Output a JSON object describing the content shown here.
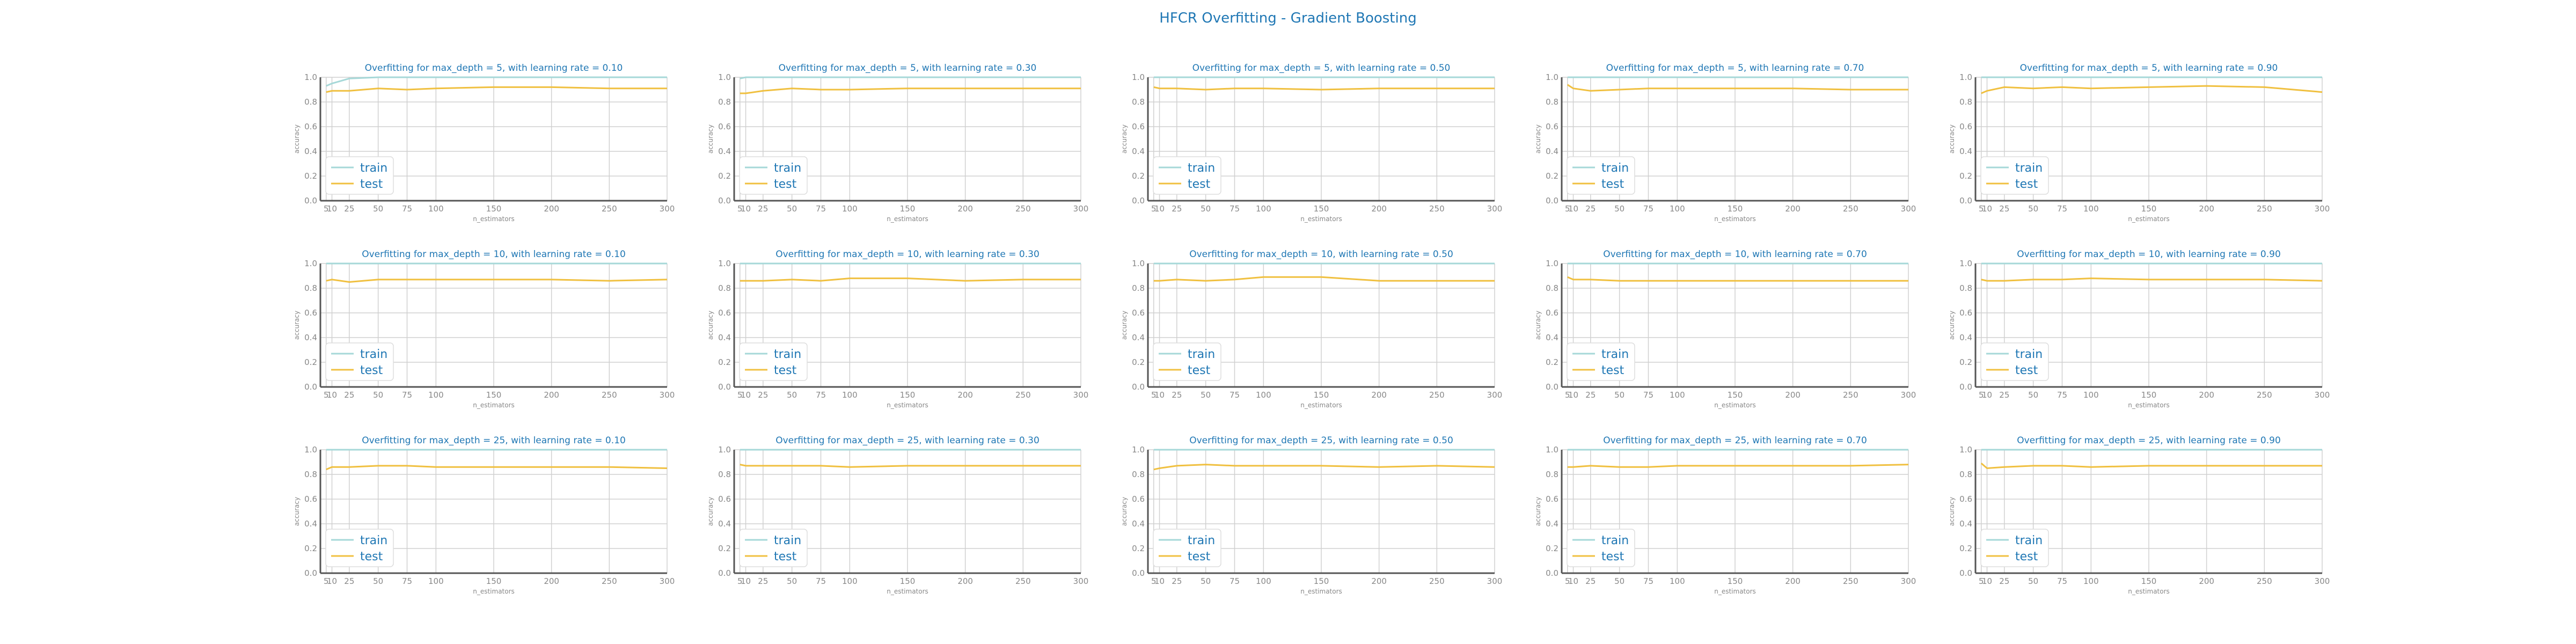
{
  "figure": {
    "title": "HFCR Overfitting - Gradient Boosting",
    "xlabel": "n_estimators",
    "ylabel": "accuracy",
    "x_ticks": [
      5,
      10,
      25,
      50,
      75,
      100,
      150,
      200,
      250,
      300
    ],
    "y_ticks": [
      "0.0",
      "0.2",
      "0.4",
      "0.6",
      "0.8",
      "1.0"
    ],
    "legend": [
      "train",
      "test"
    ],
    "colors": {
      "train": "#a6d8d8",
      "test": "#f0c040",
      "title": "#1f77b4",
      "grid": "#d0d0d0",
      "axis": "#555555"
    }
  },
  "chart_data": [
    {
      "type": "line",
      "title": "Overfitting for max_depth = 5, with learning rate = 0.10",
      "xlabel": "n_estimators",
      "ylabel": "accuracy",
      "ylim": [
        0,
        1
      ],
      "legend_position": "lower-left",
      "grid": true,
      "x": [
        5,
        10,
        25,
        50,
        75,
        100,
        150,
        200,
        250,
        300
      ],
      "series": [
        {
          "name": "train",
          "values": [
            0.93,
            0.95,
            0.99,
            1.0,
            1.0,
            1.0,
            1.0,
            1.0,
            1.0,
            1.0
          ]
        },
        {
          "name": "test",
          "values": [
            0.88,
            0.89,
            0.89,
            0.91,
            0.9,
            0.91,
            0.92,
            0.92,
            0.91,
            0.91
          ]
        }
      ]
    },
    {
      "type": "line",
      "title": "Overfitting for max_depth = 5, with learning rate = 0.30",
      "xlabel": "n_estimators",
      "ylabel": "accuracy",
      "ylim": [
        0,
        1
      ],
      "legend_position": "lower-left",
      "grid": true,
      "x": [
        5,
        10,
        25,
        50,
        75,
        100,
        150,
        200,
        250,
        300
      ],
      "series": [
        {
          "name": "train",
          "values": [
            0.99,
            1.0,
            1.0,
            1.0,
            1.0,
            1.0,
            1.0,
            1.0,
            1.0,
            1.0
          ]
        },
        {
          "name": "test",
          "values": [
            0.87,
            0.87,
            0.89,
            0.91,
            0.9,
            0.9,
            0.91,
            0.91,
            0.91,
            0.91
          ]
        }
      ]
    },
    {
      "type": "line",
      "title": "Overfitting for max_depth = 5, with learning rate = 0.50",
      "xlabel": "n_estimators",
      "ylabel": "accuracy",
      "ylim": [
        0,
        1
      ],
      "legend_position": "lower-left",
      "grid": true,
      "x": [
        5,
        10,
        25,
        50,
        75,
        100,
        150,
        200,
        250,
        300
      ],
      "series": [
        {
          "name": "train",
          "values": [
            1.0,
            1.0,
            1.0,
            1.0,
            1.0,
            1.0,
            1.0,
            1.0,
            1.0,
            1.0
          ]
        },
        {
          "name": "test",
          "values": [
            0.92,
            0.91,
            0.91,
            0.9,
            0.91,
            0.91,
            0.9,
            0.91,
            0.91,
            0.91
          ]
        }
      ]
    },
    {
      "type": "line",
      "title": "Overfitting for max_depth = 5, with learning rate = 0.70",
      "xlabel": "n_estimators",
      "ylabel": "accuracy",
      "ylim": [
        0,
        1
      ],
      "legend_position": "lower-left",
      "grid": true,
      "x": [
        5,
        10,
        25,
        50,
        75,
        100,
        150,
        200,
        250,
        300
      ],
      "series": [
        {
          "name": "train",
          "values": [
            1.0,
            1.0,
            1.0,
            1.0,
            1.0,
            1.0,
            1.0,
            1.0,
            1.0,
            1.0
          ]
        },
        {
          "name": "test",
          "values": [
            0.94,
            0.91,
            0.89,
            0.9,
            0.91,
            0.91,
            0.91,
            0.91,
            0.9,
            0.9
          ]
        }
      ]
    },
    {
      "type": "line",
      "title": "Overfitting for max_depth = 5, with learning rate = 0.90",
      "xlabel": "n_estimators",
      "ylabel": "accuracy",
      "ylim": [
        0,
        1
      ],
      "legend_position": "lower-left",
      "grid": true,
      "x": [
        5,
        10,
        25,
        50,
        75,
        100,
        150,
        200,
        250,
        300
      ],
      "series": [
        {
          "name": "train",
          "values": [
            1.0,
            1.0,
            1.0,
            1.0,
            1.0,
            1.0,
            1.0,
            1.0,
            1.0,
            1.0
          ]
        },
        {
          "name": "test",
          "values": [
            0.87,
            0.89,
            0.92,
            0.91,
            0.92,
            0.91,
            0.92,
            0.93,
            0.92,
            0.88
          ]
        }
      ]
    },
    {
      "type": "line",
      "title": "Overfitting for max_depth = 10, with learning rate = 0.10",
      "xlabel": "n_estimators",
      "ylabel": "accuracy",
      "ylim": [
        0,
        1
      ],
      "legend_position": "lower-left",
      "grid": true,
      "x": [
        5,
        10,
        25,
        50,
        75,
        100,
        150,
        200,
        250,
        300
      ],
      "series": [
        {
          "name": "train",
          "values": [
            1.0,
            1.0,
            1.0,
            1.0,
            1.0,
            1.0,
            1.0,
            1.0,
            1.0,
            1.0
          ]
        },
        {
          "name": "test",
          "values": [
            0.86,
            0.87,
            0.85,
            0.87,
            0.87,
            0.87,
            0.87,
            0.87,
            0.86,
            0.87
          ]
        }
      ]
    },
    {
      "type": "line",
      "title": "Overfitting for max_depth = 10, with learning rate = 0.30",
      "xlabel": "n_estimators",
      "ylabel": "accuracy",
      "ylim": [
        0,
        1
      ],
      "legend_position": "lower-left",
      "grid": true,
      "x": [
        5,
        10,
        25,
        50,
        75,
        100,
        150,
        200,
        250,
        300
      ],
      "series": [
        {
          "name": "train",
          "values": [
            1.0,
            1.0,
            1.0,
            1.0,
            1.0,
            1.0,
            1.0,
            1.0,
            1.0,
            1.0
          ]
        },
        {
          "name": "test",
          "values": [
            0.86,
            0.86,
            0.86,
            0.87,
            0.86,
            0.88,
            0.88,
            0.86,
            0.87,
            0.87
          ]
        }
      ]
    },
    {
      "type": "line",
      "title": "Overfitting for max_depth = 10, with learning rate = 0.50",
      "xlabel": "n_estimators",
      "ylabel": "accuracy",
      "ylim": [
        0,
        1
      ],
      "legend_position": "lower-left",
      "grid": true,
      "x": [
        5,
        10,
        25,
        50,
        75,
        100,
        150,
        200,
        250,
        300
      ],
      "series": [
        {
          "name": "train",
          "values": [
            1.0,
            1.0,
            1.0,
            1.0,
            1.0,
            1.0,
            1.0,
            1.0,
            1.0,
            1.0
          ]
        },
        {
          "name": "test",
          "values": [
            0.86,
            0.86,
            0.87,
            0.86,
            0.87,
            0.89,
            0.89,
            0.86,
            0.86,
            0.86
          ]
        }
      ]
    },
    {
      "type": "line",
      "title": "Overfitting for max_depth = 10, with learning rate = 0.70",
      "xlabel": "n_estimators",
      "ylabel": "accuracy",
      "ylim": [
        0,
        1
      ],
      "legend_position": "lower-left",
      "grid": true,
      "x": [
        5,
        10,
        25,
        50,
        75,
        100,
        150,
        200,
        250,
        300
      ],
      "series": [
        {
          "name": "train",
          "values": [
            1.0,
            1.0,
            1.0,
            1.0,
            1.0,
            1.0,
            1.0,
            1.0,
            1.0,
            1.0
          ]
        },
        {
          "name": "test",
          "values": [
            0.89,
            0.87,
            0.87,
            0.86,
            0.86,
            0.86,
            0.86,
            0.86,
            0.86,
            0.86
          ]
        }
      ]
    },
    {
      "type": "line",
      "title": "Overfitting for max_depth = 10, with learning rate = 0.90",
      "xlabel": "n_estimators",
      "ylabel": "accuracy",
      "ylim": [
        0,
        1
      ],
      "legend_position": "lower-left",
      "grid": true,
      "x": [
        5,
        10,
        25,
        50,
        75,
        100,
        150,
        200,
        250,
        300
      ],
      "series": [
        {
          "name": "train",
          "values": [
            1.0,
            1.0,
            1.0,
            1.0,
            1.0,
            1.0,
            1.0,
            1.0,
            1.0,
            1.0
          ]
        },
        {
          "name": "test",
          "values": [
            0.87,
            0.86,
            0.86,
            0.87,
            0.87,
            0.88,
            0.87,
            0.87,
            0.87,
            0.86
          ]
        }
      ]
    },
    {
      "type": "line",
      "title": "Overfitting for max_depth = 25, with learning rate = 0.10",
      "xlabel": "n_estimators",
      "ylabel": "accuracy",
      "ylim": [
        0,
        1
      ],
      "legend_position": "lower-left",
      "grid": true,
      "x": [
        5,
        10,
        25,
        50,
        75,
        100,
        150,
        200,
        250,
        300
      ],
      "series": [
        {
          "name": "train",
          "values": [
            1.0,
            1.0,
            1.0,
            1.0,
            1.0,
            1.0,
            1.0,
            1.0,
            1.0,
            1.0
          ]
        },
        {
          "name": "test",
          "values": [
            0.84,
            0.86,
            0.86,
            0.87,
            0.87,
            0.86,
            0.86,
            0.86,
            0.86,
            0.85
          ]
        }
      ]
    },
    {
      "type": "line",
      "title": "Overfitting for max_depth = 25, with learning rate = 0.30",
      "xlabel": "n_estimators",
      "ylabel": "accuracy",
      "ylim": [
        0,
        1
      ],
      "legend_position": "lower-left",
      "grid": true,
      "x": [
        5,
        10,
        25,
        50,
        75,
        100,
        150,
        200,
        250,
        300
      ],
      "series": [
        {
          "name": "train",
          "values": [
            1.0,
            1.0,
            1.0,
            1.0,
            1.0,
            1.0,
            1.0,
            1.0,
            1.0,
            1.0
          ]
        },
        {
          "name": "test",
          "values": [
            0.88,
            0.87,
            0.87,
            0.87,
            0.87,
            0.86,
            0.87,
            0.87,
            0.87,
            0.87
          ]
        }
      ]
    },
    {
      "type": "line",
      "title": "Overfitting for max_depth = 25, with learning rate = 0.50",
      "xlabel": "n_estimators",
      "ylabel": "accuracy",
      "ylim": [
        0,
        1
      ],
      "legend_position": "lower-left",
      "grid": true,
      "x": [
        5,
        10,
        25,
        50,
        75,
        100,
        150,
        200,
        250,
        300
      ],
      "series": [
        {
          "name": "train",
          "values": [
            1.0,
            1.0,
            1.0,
            1.0,
            1.0,
            1.0,
            1.0,
            1.0,
            1.0,
            1.0
          ]
        },
        {
          "name": "test",
          "values": [
            0.84,
            0.85,
            0.87,
            0.88,
            0.87,
            0.87,
            0.87,
            0.86,
            0.87,
            0.86
          ]
        }
      ]
    },
    {
      "type": "line",
      "title": "Overfitting for max_depth = 25, with learning rate = 0.70",
      "xlabel": "n_estimators",
      "ylabel": "accuracy",
      "ylim": [
        0,
        1
      ],
      "legend_position": "lower-left",
      "grid": true,
      "x": [
        5,
        10,
        25,
        50,
        75,
        100,
        150,
        200,
        250,
        300
      ],
      "series": [
        {
          "name": "train",
          "values": [
            1.0,
            1.0,
            1.0,
            1.0,
            1.0,
            1.0,
            1.0,
            1.0,
            1.0,
            1.0
          ]
        },
        {
          "name": "test",
          "values": [
            0.86,
            0.86,
            0.87,
            0.86,
            0.86,
            0.87,
            0.87,
            0.87,
            0.87,
            0.88
          ]
        }
      ]
    },
    {
      "type": "line",
      "title": "Overfitting for max_depth = 25, with learning rate = 0.90",
      "xlabel": "n_estimators",
      "ylabel": "accuracy",
      "ylim": [
        0,
        1
      ],
      "legend_position": "lower-left",
      "grid": true,
      "x": [
        5,
        10,
        25,
        50,
        75,
        100,
        150,
        200,
        250,
        300
      ],
      "series": [
        {
          "name": "train",
          "values": [
            1.0,
            1.0,
            1.0,
            1.0,
            1.0,
            1.0,
            1.0,
            1.0,
            1.0,
            1.0
          ]
        },
        {
          "name": "test",
          "values": [
            0.89,
            0.85,
            0.86,
            0.87,
            0.87,
            0.86,
            0.87,
            0.87,
            0.87,
            0.87
          ]
        }
      ]
    }
  ]
}
